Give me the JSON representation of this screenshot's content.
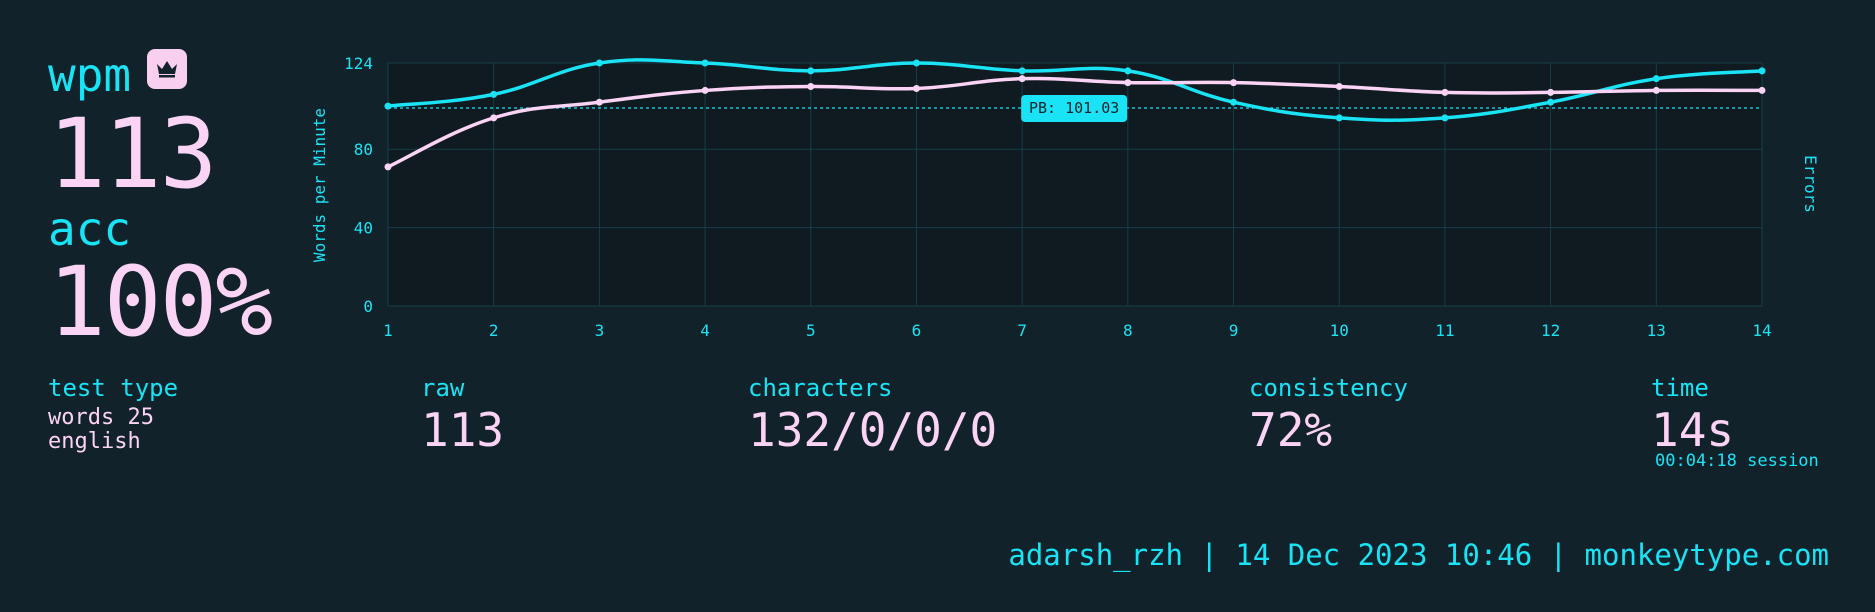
{
  "colors": {
    "background": "#11222a",
    "accent": "#19e3f5",
    "text": "#fbd3f4",
    "grid": "#183d48",
    "chart_bg": "#0f1b20"
  },
  "summary": {
    "wpm_label": "wpm",
    "wpm_value": "113",
    "badge_icon": "crown-icon",
    "acc_label": "acc",
    "acc_value": "100%"
  },
  "stats": {
    "test_type_label": "test type",
    "test_type_line1": "words 25",
    "test_type_line2": "english",
    "raw_label": "raw",
    "raw_value": "113",
    "characters_label": "characters",
    "characters_value": "132/0/0/0",
    "consistency_label": "consistency",
    "consistency_value": "72%",
    "time_label": "time",
    "time_value": "14s",
    "time_session": "00:04:18 session"
  },
  "footer": {
    "text": "adarsh_rzh | 14 Dec 2023 10:46 | monkeytype.com"
  },
  "chart_data": {
    "type": "line",
    "ylabel": "Words per Minute",
    "y2label": "Errors",
    "x": [
      1,
      2,
      3,
      4,
      5,
      6,
      7,
      8,
      9,
      10,
      11,
      12,
      13,
      14
    ],
    "ylim": [
      0,
      124
    ],
    "yticks": [
      0,
      40,
      80,
      124
    ],
    "grid": true,
    "series": [
      {
        "color": "#19e3f5",
        "values": [
          102,
          108,
          124,
          124,
          120,
          124,
          120,
          120,
          104,
          96,
          96,
          104,
          116,
          120
        ]
      },
      {
        "color": "#fbd3f4",
        "values": [
          71,
          96,
          104,
          110,
          112,
          111,
          116,
          114,
          114,
          112,
          109,
          109,
          110,
          110
        ]
      }
    ],
    "pb_value": 101.03,
    "pb_label": "PB: 101.03"
  }
}
